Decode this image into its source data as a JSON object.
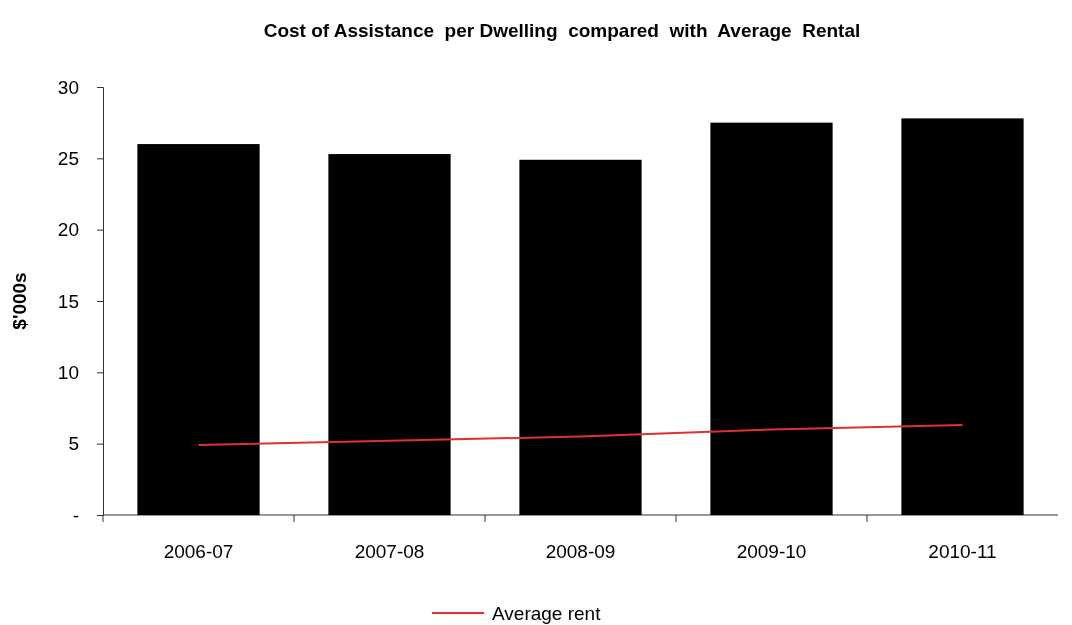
{
  "chart_data": {
    "type": "bar",
    "title": "Cost of Assistance  per Dwelling  compared  with  Average  Rental",
    "ylabel": "$'000s",
    "categories": [
      "2006-07",
      "2007-08",
      "2008-09",
      "2009-10",
      "2010-11"
    ],
    "series": [
      {
        "color": "#000000",
        "values": [
          26.0,
          25.3,
          24.9,
          27.5,
          27.8
        ]
      },
      {
        "name": "Average rent",
        "type": "line",
        "color": "#e03030",
        "values": [
          4.9,
          5.2,
          5.5,
          6.0,
          6.3
        ]
      }
    ],
    "ylim": [
      0,
      30
    ],
    "yticks": [
      {
        "value": 0,
        "label": "-"
      },
      5,
      10,
      15,
      20,
      25,
      30
    ],
    "grid": false,
    "legend": "bottom"
  }
}
